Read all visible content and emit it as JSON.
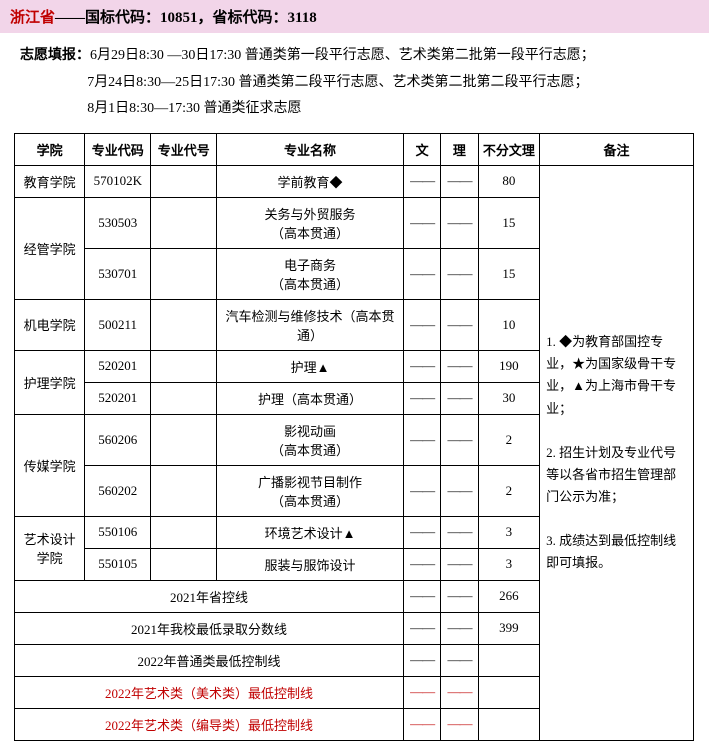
{
  "header": {
    "province": "浙江省",
    "sep": "——",
    "codes": "国标代码：10851，省标代码：3118"
  },
  "schedule": {
    "label": "志愿填报：",
    "lines": [
      "6月29日8:30 —30日17:30 普通类第一段平行志愿、艺术类第二批第一段平行志愿；",
      "7月24日8:30—25日17:30 普通类第二段平行志愿、艺术类第二批第二段平行志愿；",
      "8月1日8:30—17:30 普通类征求志愿"
    ]
  },
  "columns": {
    "college": "学院",
    "code": "专业代码",
    "seq": "专业代号",
    "name": "专业名称",
    "wen": "文",
    "li": "理",
    "nofen": "不分文理",
    "remark": "备注"
  },
  "dash": "——",
  "rows": [
    {
      "college": "教育学院",
      "rowspan": 1,
      "code": "570102K",
      "name": "学前教育◆",
      "nofen": "80"
    },
    {
      "college": "经管学院",
      "rowspan": 2,
      "code": "530503",
      "name": "关务与外贸服务\n（高本贯通）",
      "nofen": "15"
    },
    {
      "code": "530701",
      "name": "电子商务\n（高本贯通）",
      "nofen": "15"
    },
    {
      "college": "机电学院",
      "rowspan": 1,
      "code": "500211",
      "name": "汽车检测与维修技术（高本贯通）",
      "nofen": "10"
    },
    {
      "college": "护理学院",
      "rowspan": 2,
      "code": "520201",
      "name": "护理▲",
      "nofen": "190"
    },
    {
      "code": "520201",
      "name": "护理（高本贯通）",
      "nofen": "30"
    },
    {
      "college": "传媒学院",
      "rowspan": 2,
      "code": "560206",
      "name": "影视动画\n（高本贯通）",
      "nofen": "2"
    },
    {
      "code": "560202",
      "name": "广播影视节目制作\n（高本贯通）",
      "nofen": "2"
    },
    {
      "college": "艺术设计学院",
      "rowspan": 2,
      "code": "550106",
      "name": "环境艺术设计▲",
      "nofen": "3"
    },
    {
      "code": "550105",
      "name": "服装与服饰设计",
      "nofen": "3"
    }
  ],
  "summary": [
    {
      "label": "2021年省控线",
      "nofen": "266"
    },
    {
      "label": "2021年我校最低录取分数线",
      "nofen": "399"
    },
    {
      "label": "2022年普通类最低控制线",
      "nofen": ""
    },
    {
      "label": "2022年艺术类（美术类）最低控制线",
      "nofen": "",
      "red": true
    },
    {
      "label": "2022年艺术类（编导类）最低控制线",
      "nofen": "",
      "red": true
    }
  ],
  "remark": {
    "p1": "1. ◆为教育部国控专业，★为国家级骨干专业，▲为上海市骨干专业；",
    "p2": "2. 招生计划及专业代号等以各省市招生管理部门公示为准；",
    "p3": "3. 成绩达到最低控制线即可填报。"
  }
}
